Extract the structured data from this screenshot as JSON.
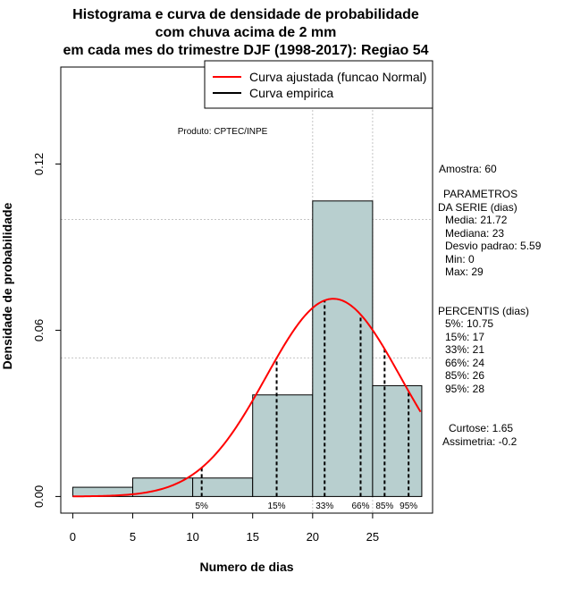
{
  "chart_data": {
    "type": "histogram",
    "title_lines": [
      "Histograma e curva de densidade de probabilidade",
      "com chuva acima de 2 mm",
      "em cada mes do trimestre DJF (1998-2017): Regiao 54"
    ],
    "xlabel": "Numero de dias",
    "ylabel": "Densidade de probabilidade",
    "xlim": [
      -1,
      30
    ],
    "ylim": [
      -0.006,
      0.155
    ],
    "x_ticks": [
      0,
      5,
      10,
      15,
      20,
      25
    ],
    "x_tick_labels": [
      "0",
      "5",
      "10",
      "15",
      "20",
      "25"
    ],
    "y_ticks": [
      0.0,
      0.06,
      0.12
    ],
    "y_tick_labels": [
      "0.00",
      "0.06",
      "0.12"
    ],
    "grid_y": [
      0.05,
      0.1
    ],
    "grid_x": [
      20,
      25
    ],
    "bins": [
      {
        "start": 0,
        "end": 5,
        "density": 0.003333
      },
      {
        "start": 5,
        "end": 10,
        "density": 0.006667
      },
      {
        "start": 10,
        "end": 15,
        "density": 0.006667
      },
      {
        "start": 15,
        "end": 20,
        "density": 0.036667
      },
      {
        "start": 20,
        "end": 25,
        "density": 0.106667
      },
      {
        "start": 25,
        "end": 30,
        "density": 0.04
      }
    ],
    "fit_curve": {
      "type": "normal",
      "mean": 21.72,
      "sd": 5.59,
      "x_range": [
        0,
        29
      ]
    },
    "percentile_markers": [
      {
        "x": 10.75,
        "label": "5%"
      },
      {
        "x": 17,
        "label": "15%"
      },
      {
        "x": 21,
        "label": "33%"
      },
      {
        "x": 24,
        "label": "66%"
      },
      {
        "x": 26,
        "label": "85%"
      },
      {
        "x": 28,
        "label": "95%"
      }
    ],
    "legend": {
      "position": "top-right",
      "entries": [
        {
          "label": "Curva ajustada (funcao Normal)",
          "color": "#ff0000"
        },
        {
          "label": "Curva empirica",
          "color": "#000000"
        }
      ]
    },
    "credit": "Produto: CPTEC/INPE",
    "bar_color": "#b8cfcf",
    "stats_lines": [
      "Amostra: 60",
      "PARAMETROS",
      "DA SERIE (dias)",
      "Media: 21.72",
      "Mediana: 23",
      "Desvio padrao: 5.59",
      "Min: 0",
      "Max: 29",
      "PERCENTIS (dias)",
      "5%: 10.75",
      "15%: 17",
      "33%: 21",
      "66%: 24",
      "85%: 26",
      "95%: 28",
      "Curtose: 1.65",
      "Assimetria: -0.2"
    ]
  }
}
